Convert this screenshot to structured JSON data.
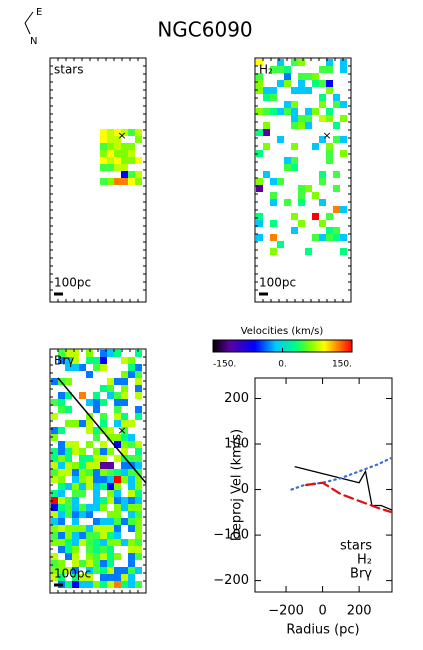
{
  "title": "NGC6090",
  "compass": {
    "east": "E",
    "north": "N"
  },
  "maps": [
    {
      "label": "stars",
      "scale": "100pc"
    },
    {
      "label": "H₂",
      "scale": "100pc"
    },
    {
      "label": "Brγ",
      "scale": "100pc"
    }
  ],
  "colorbar": {
    "title": "Velocities (km/s)",
    "clim": [
      -150,
      150
    ],
    "ticks": [
      {
        "value": -150,
        "label": "-150."
      },
      {
        "value": 0,
        "label": "0."
      },
      {
        "value": 150,
        "label": "150."
      }
    ]
  },
  "chart_data": {
    "type": "line",
    "xlabel": "Radius (pc)",
    "ylabel": "Deproj Vel (km/s)",
    "xlim": [
      -370,
      380
    ],
    "ylim": [
      -225,
      245
    ],
    "xticks": [
      {
        "value": -200,
        "label": "−200"
      },
      0,
      200
    ],
    "yticks": [
      200,
      100,
      0,
      {
        "value": -100,
        "label": "−100"
      },
      {
        "value": -200,
        "label": "−200"
      }
    ],
    "legend": "lower right",
    "series": [
      {
        "name": "stars",
        "color": "#000000",
        "linestyle": "solid",
        "x": [
          -150,
          200,
          235,
          270,
          320,
          380
        ],
        "values": [
          50,
          15,
          40,
          -35,
          -35,
          -45
        ]
      },
      {
        "name": "H₂",
        "color": "#3a6fd8",
        "linestyle": "dotted",
        "x": [
          -170,
          -100,
          0,
          100,
          200,
          300,
          380
        ],
        "values": [
          0,
          10,
          15,
          25,
          40,
          55,
          70
        ]
      },
      {
        "name": "Brγ",
        "color": "#e01010",
        "linestyle": "dashed",
        "x": [
          -90,
          0,
          100,
          200,
          300,
          380
        ],
        "values": [
          10,
          15,
          -10,
          -25,
          -40,
          -50
        ]
      }
    ]
  }
}
